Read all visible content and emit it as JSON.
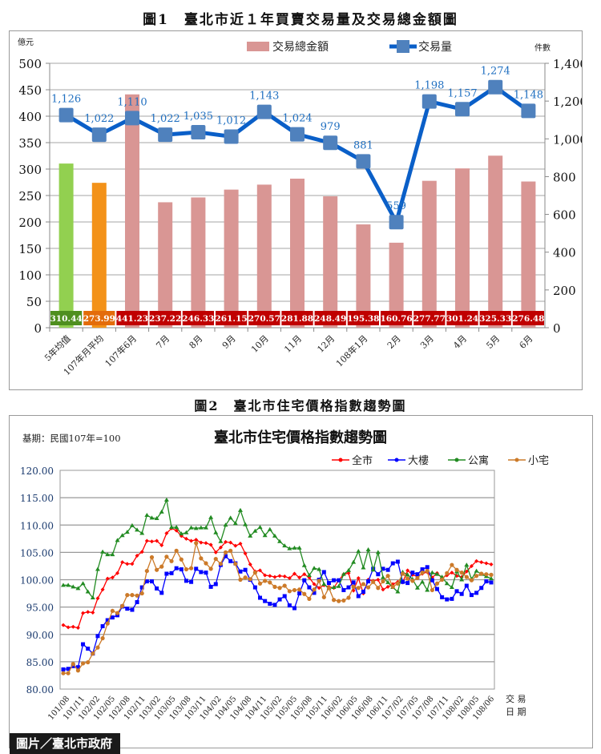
{
  "figure1": {
    "title": "圖1　臺北市近１年買賣交易量及交易總金額圖",
    "left_unit": "億元",
    "right_unit": "件數",
    "legend_amount": "交易總金額",
    "legend_count": "交易量"
  },
  "figure2": {
    "title": "圖2　臺北市住宅價格指數趨勢圖",
    "inner_title": "臺北市住宅價格指數趨勢圖",
    "base_note": "基期：民國107年=100",
    "legend": [
      "全市",
      "大樓",
      "公寓",
      "小宅"
    ],
    "x_axis_label_line1": "交 易",
    "x_axis_label_line2": "日 期"
  },
  "credit": "圖片／臺北市政府",
  "colors": {
    "bar_pink": "#d99694",
    "bar_green": "#92d050",
    "bar_orange": "#f39219",
    "label_red": "#c00000",
    "label_green": "#4f8f1f",
    "label_orange": "#e36c0a",
    "line_blue": "#0a5fc8",
    "marker_blue": "#4f81bd",
    "city": "#ff0000",
    "building": "#0000ff",
    "apartment": "#228b22",
    "small": "#cc7a29"
  },
  "chart_data": [
    {
      "type": "bar",
      "title": "臺北市近１年買賣交易量及交易總金額圖",
      "categories": [
        "5年均值",
        "107年月平均",
        "107年6月",
        "7月",
        "8月",
        "9月",
        "10月",
        "11月",
        "12月",
        "108年1月",
        "2月",
        "3月",
        "4月",
        "5月",
        "6月"
      ],
      "series": [
        {
          "name": "交易總金額",
          "axis": "left",
          "type": "bar",
          "values": [
            310.44,
            273.99,
            441.23,
            237.22,
            246.33,
            261.15,
            270.57,
            281.88,
            248.49,
            195.38,
            160.76,
            277.77,
            301.24,
            325.33,
            276.48
          ]
        },
        {
          "name": "交易量",
          "axis": "right",
          "type": "line",
          "values": [
            1126,
            1022,
            1110,
            1022,
            1035,
            1012,
            1143,
            1024,
            979,
            881,
            559,
            1198,
            1157,
            1274,
            1148
          ]
        }
      ],
      "ylabel_left": "億元",
      "ylim_left": [
        0,
        500
      ],
      "yticks_left": [
        0,
        50,
        100,
        150,
        200,
        250,
        300,
        350,
        400,
        450,
        500
      ],
      "ylabel_right": "件數",
      "ylim_right": [
        0,
        1400
      ],
      "yticks_right": [
        "0",
        "200",
        "400",
        "600",
        "800",
        "1,000",
        "1,200",
        "1,400"
      ],
      "count_labels": [
        "1,126",
        "1,022",
        "1,110",
        "1,022",
        "1,035",
        "1,012",
        "1,143",
        "1,024",
        "979",
        "881",
        "559",
        "1,198",
        "1,157",
        "1,274",
        "1,148"
      ],
      "amount_labels": [
        "310.44",
        "273.99",
        "441.23",
        "237.22",
        "246.33",
        "261.15",
        "270.57",
        "281.88",
        "248.49",
        "195.38",
        "160.76",
        "277.77",
        "301.24",
        "325.33",
        "276.48"
      ],
      "legend_position": "top",
      "grid": true
    },
    {
      "type": "line",
      "title": "臺北市住宅價格指數趨勢圖",
      "subtitle": "基期：民國107年=100",
      "xlabel": "交易日期",
      "ylim": [
        80,
        120
      ],
      "yticks": [
        "80.00",
        "85.00",
        "90.00",
        "95.00",
        "100.00",
        "105.00",
        "110.00",
        "115.00",
        "120.00"
      ],
      "x_tick_labels": [
        "101/08",
        "101/11",
        "102/02",
        "102/05",
        "102/08",
        "102/11",
        "103/02",
        "103/05",
        "103/08",
        "103/11",
        "104/02",
        "104/05",
        "104/08",
        "104/11",
        "105/02",
        "105/05",
        "105/08",
        "105/11",
        "106/02",
        "106/05",
        "106/08",
        "106/11",
        "107/02",
        "107/05",
        "107/08",
        "107/11",
        "108/02",
        "108/05",
        "108/06"
      ],
      "legend_position": "top-right",
      "grid": true,
      "series": [
        {
          "name": "全市",
          "marker": "diamond",
          "values": [
            91.7,
            91.3,
            91.4,
            91.2,
            93.9,
            94.1,
            94.0,
            96.6,
            98.2,
            100.2,
            100.4,
            101.2,
            103.2,
            102.9,
            102.9,
            104.4,
            105.1,
            107.1,
            107.0,
            107.1,
            106.3,
            108.5,
            109.4,
            109.0,
            108.0,
            107.5,
            107.1,
            107.3,
            106.8,
            106.7,
            106.4,
            105.0,
            105.9,
            106.9,
            106.8,
            106.2,
            106.6,
            104.8,
            102.8,
            101.5,
            101.7,
            100.8,
            100.7,
            100.5,
            100.7,
            100.6,
            100.3,
            101.1,
            100.4,
            101.0,
            100.4,
            99.2,
            98.5,
            99.0,
            98.7,
            98.5,
            99.9,
            101.0,
            101.2,
            98.0,
            100.3,
            97.5,
            100.0,
            99.8,
            100.0,
            98.2,
            98.7,
            99.2,
            99.6,
            99.5,
            101.7,
            100.9,
            100.6,
            101.1,
            101.4,
            100.4,
            101.2,
            100.3,
            100.8,
            101.3,
            100.7,
            100.5,
            101.5,
            102.5,
            103.4,
            103.2,
            103.0,
            102.8
          ]
        },
        {
          "name": "大樓",
          "marker": "square",
          "values": [
            83.6,
            83.7,
            84.2,
            84.0,
            88.2,
            87.4,
            86.5,
            89.7,
            91.5,
            92.6,
            93.1,
            93.5,
            95.1,
            94.7,
            94.5,
            95.9,
            98.6,
            99.7,
            99.7,
            98.4,
            97.6,
            101.1,
            101.2,
            102.1,
            101.9,
            99.8,
            99.6,
            102.0,
            101.4,
            101.3,
            98.7,
            99.2,
            102.7,
            104.3,
            103.4,
            103.0,
            101.5,
            101.8,
            100.0,
            98.6,
            96.7,
            96.1,
            95.6,
            95.4,
            96.4,
            97.0,
            95.3,
            94.8,
            97.5,
            99.9,
            98.6,
            97.6,
            100.0,
            101.4,
            99.4,
            99.9,
            99.9,
            98.1,
            98.6,
            99.5,
            97.0,
            97.8,
            99.7,
            102.0,
            101.0,
            102.0,
            101.8,
            103.0,
            103.3,
            99.6,
            99.4,
            101.3,
            101.0,
            101.9,
            102.3,
            99.9,
            98.3,
            96.8,
            96.4,
            96.5,
            97.9,
            97.4,
            98.9,
            97.2,
            97.6,
            98.5,
            99.7,
            99.5
          ]
        },
        {
          "name": "公寓",
          "marker": "triangle",
          "values": [
            99.0,
            99.0,
            98.7,
            98.4,
            99.3,
            97.8,
            96.7,
            101.9,
            105.1,
            104.6,
            104.6,
            107.2,
            108.1,
            108.7,
            109.9,
            109.1,
            108.5,
            111.8,
            111.3,
            111.2,
            112.4,
            114.6,
            109.6,
            109.6,
            108.4,
            108.6,
            109.5,
            109.4,
            109.5,
            109.5,
            111.4,
            108.6,
            107.0,
            110.0,
            111.3,
            110.3,
            112.7,
            110.1,
            108.0,
            108.9,
            109.6,
            108.1,
            109.2,
            108.0,
            107.0,
            106.2,
            105.7,
            105.8,
            105.8,
            102.6,
            100.8,
            102.1,
            101.9,
            99.2,
            98.4,
            98.6,
            98.8,
            101.0,
            101.7,
            103.2,
            105.2,
            102.2,
            105.5,
            101.8,
            105.0,
            100.4,
            99.5,
            98.6,
            97.8,
            101.4,
            100.9,
            100.1,
            98.5,
            99.6,
            98.1,
            101.3,
            101.0,
            100.5,
            99.3,
            98.6,
            101.5,
            100.0,
            102.7,
            100.1,
            101.6,
            101.0,
            100.6,
            100.2
          ]
        },
        {
          "name": "小宅",
          "marker": "circle",
          "values": [
            82.9,
            82.9,
            84.6,
            83.4,
            84.7,
            84.9,
            86.5,
            87.6,
            89.3,
            92.0,
            94.3,
            93.9,
            95.2,
            97.2,
            97.2,
            97.1,
            97.5,
            101.6,
            104.1,
            101.8,
            102.4,
            104.2,
            103.4,
            105.3,
            103.7,
            101.9,
            102.1,
            106.7,
            103.9,
            103.0,
            102.0,
            103.8,
            102.9,
            105.0,
            105.3,
            102.9,
            100.0,
            100.4,
            100.1,
            101.3,
            99.3,
            99.8,
            99.5,
            98.7,
            98.5,
            98.9,
            97.9,
            98.1,
            98.2,
            97.4,
            96.5,
            98.2,
            99.8,
            96.8,
            98.5,
            96.3,
            96.1,
            96.2,
            96.7,
            98.7,
            98.5,
            99.2,
            98.6,
            99.6,
            98.5,
            99.7,
            100.7,
            98.7,
            99.3,
            101.1,
            100.2,
            99.8,
            100.3,
            101.3,
            101.6,
            98.1,
            99.3,
            100.0,
            101.2,
            102.7,
            101.8,
            101.3,
            100.5,
            99.9,
            100.7,
            101.1,
            101.0,
            100.9
          ]
        }
      ]
    }
  ]
}
